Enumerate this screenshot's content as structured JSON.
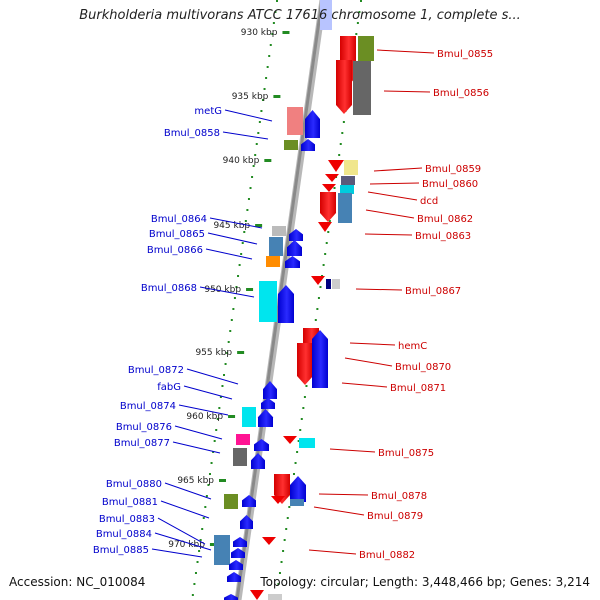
{
  "title": "Burkholderia multivorans ATCC 17616 chromosome 1, complete s...",
  "footer": {
    "accession": "Accession: NC_010084",
    "topology": "Topology: circular; Length: 3,448,466 bp; Genes: 3,214"
  },
  "colors": {
    "backbone": "#8a8a8a",
    "tick": "#228b22",
    "forward_label": "#cc0000",
    "reverse_label": "#0000cc"
  },
  "ticks": [
    {
      "label": "930 kbp"
    },
    {
      "label": "935 kbp"
    },
    {
      "label": "940 kbp"
    },
    {
      "label": "945 kbp"
    },
    {
      "label": "950 kbp"
    },
    {
      "label": "955 kbp"
    },
    {
      "label": "960 kbp"
    },
    {
      "label": "965 kbp"
    },
    {
      "label": "970 kbp"
    }
  ],
  "forward_labels": [
    {
      "text": "Bmul_0855"
    },
    {
      "text": "Bmul_0856"
    },
    {
      "text": "Bmul_0859"
    },
    {
      "text": "Bmul_0860"
    },
    {
      "text": "dcd"
    },
    {
      "text": "Bmul_0862"
    },
    {
      "text": "Bmul_0863"
    },
    {
      "text": "Bmul_0867"
    },
    {
      "text": "hemC"
    },
    {
      "text": "Bmul_0870"
    },
    {
      "text": "Bmul_0871"
    },
    {
      "text": "Bmul_0875"
    },
    {
      "text": "Bmul_0878"
    },
    {
      "text": "Bmul_0879"
    },
    {
      "text": "Bmul_0882"
    }
  ],
  "reverse_labels": [
    {
      "text": "metG"
    },
    {
      "text": "Bmul_0858"
    },
    {
      "text": "Bmul_0864"
    },
    {
      "text": "Bmul_0865"
    },
    {
      "text": "Bmul_0866"
    },
    {
      "text": "Bmul_0868"
    },
    {
      "text": "Bmul_0872"
    },
    {
      "text": "fabG"
    },
    {
      "text": "Bmul_0874"
    },
    {
      "text": "Bmul_0876"
    },
    {
      "text": "Bmul_0877"
    },
    {
      "text": "Bmul_0880"
    },
    {
      "text": "Bmul_0881"
    },
    {
      "text": "Bmul_0883"
    },
    {
      "text": "Bmul_0884"
    },
    {
      "text": "Bmul_0885"
    }
  ]
}
